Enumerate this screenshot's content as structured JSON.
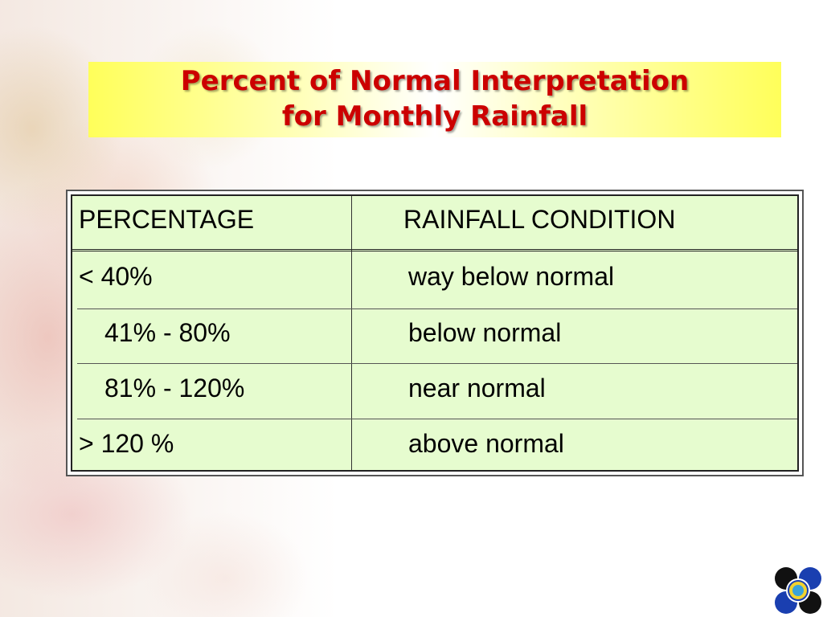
{
  "title": {
    "line1": "Percent of Normal Interpretation",
    "line2": "for Monthly Rainfall"
  },
  "table": {
    "headers": {
      "percentage": "PERCENTAGE",
      "condition": "RAINFALL CONDITION"
    },
    "rows": [
      {
        "percentage": "< 40%",
        "condition": "way below normal"
      },
      {
        "percentage": "41% - 80%",
        "condition": "below normal"
      },
      {
        "percentage": "81% - 120%",
        "condition": "near normal"
      },
      {
        "percentage": "> 120 %",
        "condition": "above normal"
      }
    ]
  },
  "colors": {
    "title_text": "#cc0000",
    "title_band": "#ffff5a",
    "table_fill": "#e6fccf"
  },
  "icons": {
    "logo": "pagasa-logo-icon"
  }
}
